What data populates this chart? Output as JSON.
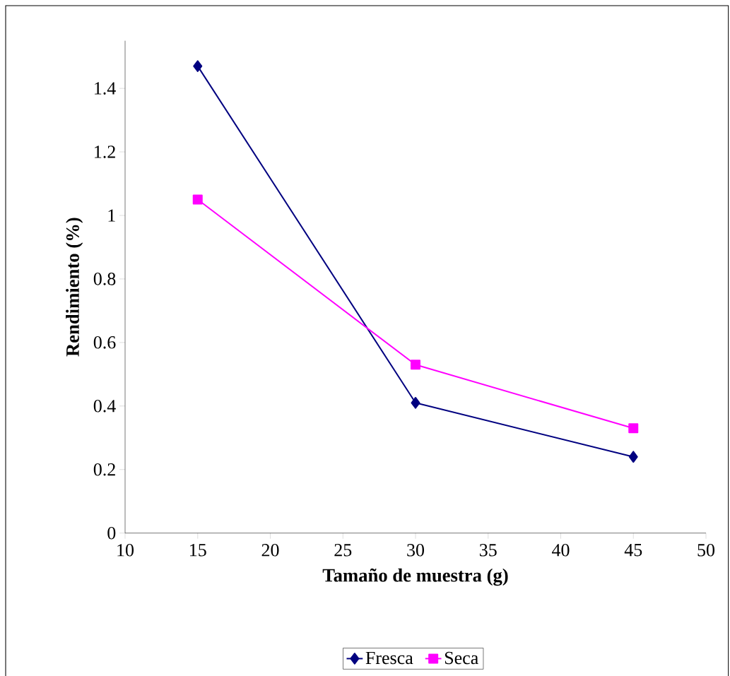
{
  "chart_data": {
    "type": "line",
    "xlabel": "Tamaño de muestra (g)",
    "ylabel": "Rendimiento (%)",
    "x": [
      15,
      30,
      45
    ],
    "series": [
      {
        "name": "Fresca",
        "color": "#000080",
        "marker": "diamond",
        "values": [
          1.47,
          0.41,
          0.24
        ]
      },
      {
        "name": "Seca",
        "color": "#ff00ff",
        "marker": "square",
        "values": [
          1.05,
          0.53,
          0.33
        ]
      }
    ],
    "xlim": [
      10,
      50
    ],
    "ylim": [
      0,
      1.55
    ],
    "xticks": [
      10,
      15,
      20,
      25,
      30,
      35,
      40,
      45,
      50
    ],
    "yticks": [
      0,
      0.2,
      0.4,
      0.6,
      0.8,
      1,
      1.2,
      1.4
    ],
    "legend": "bottom"
  }
}
